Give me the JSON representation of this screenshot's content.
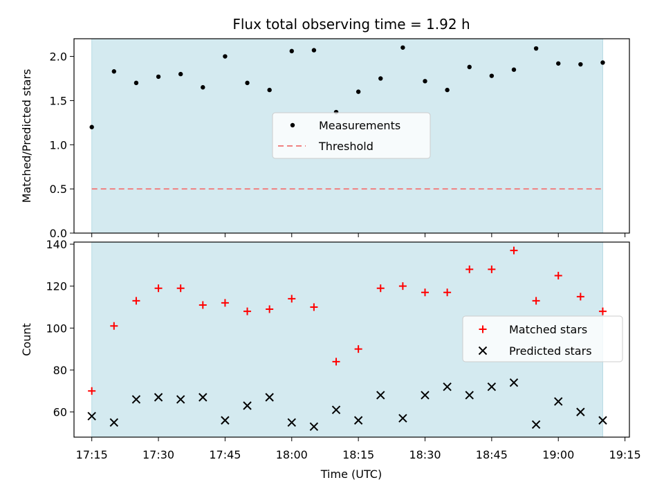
{
  "title": "Flux total observing time = 1.92 h",
  "colors": {
    "shade": "#d4eaf0",
    "matched": "#ff0000",
    "predicted": "#000000",
    "measurement": "#000000",
    "threshold": "#f08080"
  },
  "chart_data": [
    {
      "type": "scatter",
      "panel": "top",
      "title": "Flux total observing time = 1.92 h",
      "xlabel": "",
      "ylabel": "Matched/Predicted stars",
      "xlim": [
        "17:11",
        "19:16"
      ],
      "ylim": [
        0.0,
        2.2
      ],
      "yticks": [
        "0.0",
        "0.5",
        "1.0",
        "1.5",
        "2.0"
      ],
      "shaded_span": [
        "17:15",
        "19:10"
      ],
      "legend": {
        "placement": "center",
        "entries": [
          "Measurements",
          "Threshold"
        ]
      },
      "threshold": {
        "name": "Threshold",
        "value": 0.5,
        "style": "dashed"
      },
      "series": [
        {
          "name": "Measurements",
          "marker": "dot",
          "x": [
            "17:15",
            "17:20",
            "17:25",
            "17:30",
            "17:35",
            "17:40",
            "17:45",
            "17:50",
            "17:55",
            "18:00",
            "18:05",
            "18:10",
            "18:15",
            "18:20",
            "18:25",
            "18:30",
            "18:35",
            "18:40",
            "18:45",
            "18:50",
            "18:55",
            "19:00",
            "19:05",
            "19:10"
          ],
          "y": [
            1.2,
            1.83,
            1.7,
            1.77,
            1.8,
            1.65,
            2.0,
            1.7,
            1.62,
            2.06,
            2.07,
            1.37,
            1.6,
            1.75,
            2.1,
            1.72,
            1.62,
            1.88,
            1.78,
            1.85,
            2.09,
            1.92,
            1.91,
            1.93
          ]
        }
      ]
    },
    {
      "type": "scatter",
      "panel": "bottom",
      "xlabel": "Time (UTC)",
      "ylabel": "Count",
      "xlim": [
        "17:11",
        "19:16"
      ],
      "ylim": [
        48,
        141
      ],
      "yticks": [
        "60",
        "80",
        "100",
        "120",
        "140"
      ],
      "xticks": [
        "17:15",
        "17:30",
        "17:45",
        "18:00",
        "18:15",
        "18:30",
        "18:45",
        "19:00",
        "19:15"
      ],
      "shaded_span": [
        "17:15",
        "19:10"
      ],
      "legend": {
        "placement": "center-right",
        "entries": [
          "Matched stars",
          "Predicted stars"
        ]
      },
      "series": [
        {
          "name": "Matched stars",
          "marker": "plus",
          "x": [
            "17:15",
            "17:20",
            "17:25",
            "17:30",
            "17:35",
            "17:40",
            "17:45",
            "17:50",
            "17:55",
            "18:00",
            "18:05",
            "18:10",
            "18:15",
            "18:20",
            "18:25",
            "18:30",
            "18:35",
            "18:40",
            "18:45",
            "18:50",
            "18:55",
            "19:00",
            "19:05",
            "19:10"
          ],
          "y": [
            70,
            101,
            113,
            119,
            119,
            111,
            112,
            108,
            109,
            114,
            110,
            84,
            90,
            119,
            120,
            117,
            117,
            128,
            128,
            137,
            113,
            125,
            115,
            108
          ]
        },
        {
          "name": "Predicted stars",
          "marker": "x",
          "x": [
            "17:15",
            "17:20",
            "17:25",
            "17:30",
            "17:35",
            "17:40",
            "17:45",
            "17:50",
            "17:55",
            "18:00",
            "18:05",
            "18:10",
            "18:15",
            "18:20",
            "18:25",
            "18:30",
            "18:35",
            "18:40",
            "18:45",
            "18:50",
            "18:55",
            "19:00",
            "19:05",
            "19:10"
          ],
          "y": [
            58,
            55,
            66,
            67,
            66,
            67,
            56,
            63,
            67,
            55,
            53,
            61,
            56,
            68,
            57,
            68,
            72,
            68,
            72,
            74,
            54,
            65,
            60,
            56
          ]
        }
      ]
    }
  ]
}
